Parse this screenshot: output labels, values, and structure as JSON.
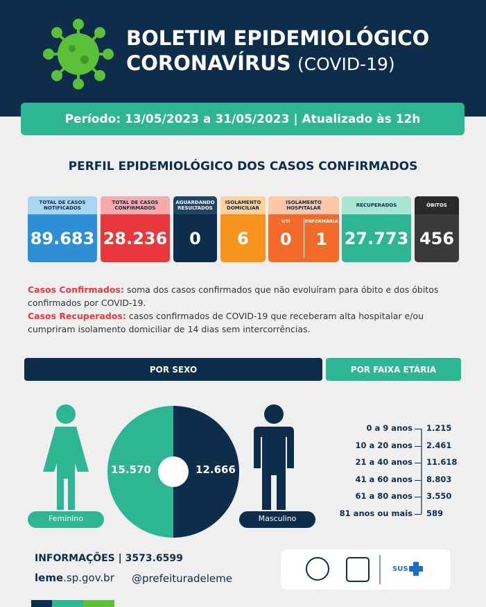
{
  "header": {
    "title_line1": "BOLETIM EPIDEMIOLÓGICO",
    "title_line2_bold": "CORONAVÍRUS",
    "title_line2_light": "(COVID-19)"
  },
  "period": "Período: 13/05/2023 a 31/05/2023 | Atualizado às 12h",
  "section_title": "PERFIL EPIDEMIOLÓGICO DOS CASOS CONFIRMADOS",
  "cards": [
    {
      "label": "TOTAL DE CASOS NOTIFICADOS",
      "value": "89.683"
    },
    {
      "label": "TOTAL DE CASOS CONFIRMADOS",
      "value": "28.236"
    },
    {
      "label": "AGUARDANDO RESULTADOS",
      "value": "0"
    },
    {
      "label": "ISOLAMENTO DOMICILIAR",
      "value": "6"
    },
    {
      "label": "ISOLAMENTO HOSPITALAR",
      "sub": [
        {
          "label": "UTI",
          "value": "0"
        },
        {
          "label": "ENFERMARIA",
          "value": "1"
        }
      ]
    },
    {
      "label": "RECUPERADOS",
      "value": "27.773"
    },
    {
      "label": "ÓBITOS",
      "value": "456"
    }
  ],
  "notes": [
    {
      "term": "Casos Confirmados:",
      "text": "soma dos casos confirmados que não evoluíram para óbito e dos óbitos confirmados por COVID-19."
    },
    {
      "term": "Casos Recuperados:",
      "text": "casos confirmados de COVID-19 que receberam alta hospitalar e/ou cumpriram isolamento domiciliar de 14 dias sem intercorrências."
    }
  ],
  "sex": {
    "title": "POR SEXO",
    "female": {
      "label": "Feminino",
      "value": "15.570"
    },
    "male": {
      "label": "Masculino",
      "value": "12.666"
    }
  },
  "age": {
    "title": "POR FAIXA ETÁRIA",
    "rows": [
      {
        "label": "0 a 9 anos",
        "value": "1.215"
      },
      {
        "label": "10 a 20 anos",
        "value": "2.461"
      },
      {
        "label": "21 a 40 anos",
        "value": "11.618"
      },
      {
        "label": "41 a 60 anos",
        "value": "8.803"
      },
      {
        "label": "61 a 80 anos",
        "value": "3.550"
      },
      {
        "label": "81 anos ou mais",
        "value": "589"
      }
    ]
  },
  "footer": {
    "info": "INFORMAÇÕES | 3573.6599",
    "site_bold": "leme",
    "site_rest": ".sp.gov.br",
    "social": "@prefeituradeleme",
    "logo_sus": "SUS"
  }
}
